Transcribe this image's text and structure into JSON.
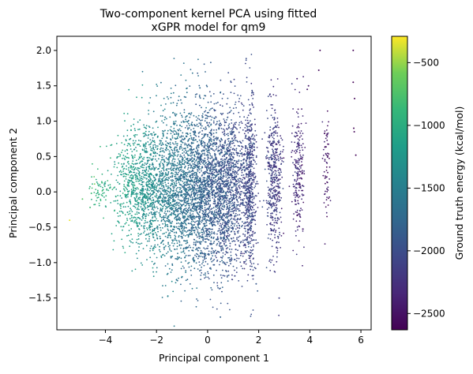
{
  "chart_data": {
    "type": "scatter",
    "title_line1": "Two-component kernel PCA using fitted",
    "title_line2": "xGPR model for qm9",
    "xlabel": "Principal component 1",
    "ylabel": "Principal component 2",
    "xlim": [
      -5.9,
      6.4
    ],
    "ylim": [
      -1.95,
      2.2
    ],
    "xticks": [
      -4,
      -2,
      0,
      2,
      4,
      6
    ],
    "xtick_labels": [
      "−4",
      "−2",
      "0",
      "2",
      "4",
      "6"
    ],
    "yticks": [
      -1.5,
      -1.0,
      -0.5,
      0.0,
      0.5,
      1.0,
      1.5,
      2.0
    ],
    "ytick_labels": [
      "−1.5",
      "−1.0",
      "−0.5",
      "0.0",
      "0.5",
      "1.0",
      "1.5",
      "2.0"
    ],
    "grid": false,
    "colorbar": {
      "label": "Ground truth energy (kcal/mol)",
      "colormap": "viridis",
      "range": [
        -2630,
        -290
      ],
      "ticks": [
        -2500,
        -2000,
        -1500,
        -1000,
        -500
      ],
      "tick_labels": [
        "−2500",
        "−2000",
        "−1500",
        "−1000",
        "−500"
      ]
    },
    "series": [
      {
        "clusters": [
          {
            "cx": -2.6,
            "cy": 0.1,
            "sx": 0.55,
            "sy": 0.42,
            "n": 900,
            "e": -1250
          },
          {
            "cx": -1.2,
            "cy": 0.05,
            "sx": 0.65,
            "sy": 0.55,
            "n": 1600,
            "e": -1600
          },
          {
            "cx": 0.0,
            "cy": 0.05,
            "sx": 0.55,
            "sy": 0.6,
            "n": 1600,
            "e": -1850
          },
          {
            "cx": 0.9,
            "cy": 0.1,
            "sx": 0.35,
            "sy": 0.55,
            "n": 900,
            "e": -1950
          },
          {
            "cx": 1.65,
            "cy": 0.1,
            "sx": 0.12,
            "sy": 0.6,
            "n": 550,
            "e": -2050
          },
          {
            "cx": 2.6,
            "cy": 0.15,
            "sx": 0.15,
            "sy": 0.55,
            "n": 450,
            "e": -2150
          },
          {
            "cx": 3.55,
            "cy": 0.25,
            "sx": 0.12,
            "sy": 0.45,
            "n": 220,
            "e": -2300
          },
          {
            "cx": 4.65,
            "cy": 0.35,
            "sx": 0.06,
            "sy": 0.35,
            "n": 70,
            "e": -2450
          },
          {
            "cx": -4.2,
            "cy": 0.0,
            "sx": 0.25,
            "sy": 0.12,
            "n": 60,
            "e": -950
          }
        ],
        "points": [
          {
            "x": -5.4,
            "y": -0.4,
            "e": -330
          },
          {
            "x": -4.9,
            "y": -0.1,
            "e": -700
          },
          {
            "x": -4.6,
            "y": -0.22,
            "e": -820
          },
          {
            "x": -4.55,
            "y": -0.02,
            "e": -850
          },
          {
            "x": 4.4,
            "y": 2.0,
            "e": -2600
          },
          {
            "x": 5.7,
            "y": 2.0,
            "e": -2620
          },
          {
            "x": 4.35,
            "y": 1.72,
            "e": -2550
          },
          {
            "x": 5.7,
            "y": 1.55,
            "e": -2600
          },
          {
            "x": 5.75,
            "y": 1.32,
            "e": -2600
          },
          {
            "x": 5.72,
            "y": 0.9,
            "e": -2580
          },
          {
            "x": 5.74,
            "y": 0.85,
            "e": -2580
          },
          {
            "x": 5.8,
            "y": 0.52,
            "e": -2600
          },
          {
            "x": 3.95,
            "y": 1.5,
            "e": -2450
          },
          {
            "x": 3.5,
            "y": 1.6,
            "e": -2400
          },
          {
            "x": 3.9,
            "y": 1.45,
            "e": -2450
          },
          {
            "x": -0.3,
            "y": 1.47,
            "e": -1700
          },
          {
            "x": 0.5,
            "y": -1.77,
            "e": -1800
          },
          {
            "x": 1.9,
            "y": -1.3,
            "e": -1900
          },
          {
            "x": -1.0,
            "y": -1.2,
            "e": -1500
          },
          {
            "x": 2.8,
            "y": -1.5,
            "e": -2100
          }
        ]
      }
    ]
  }
}
